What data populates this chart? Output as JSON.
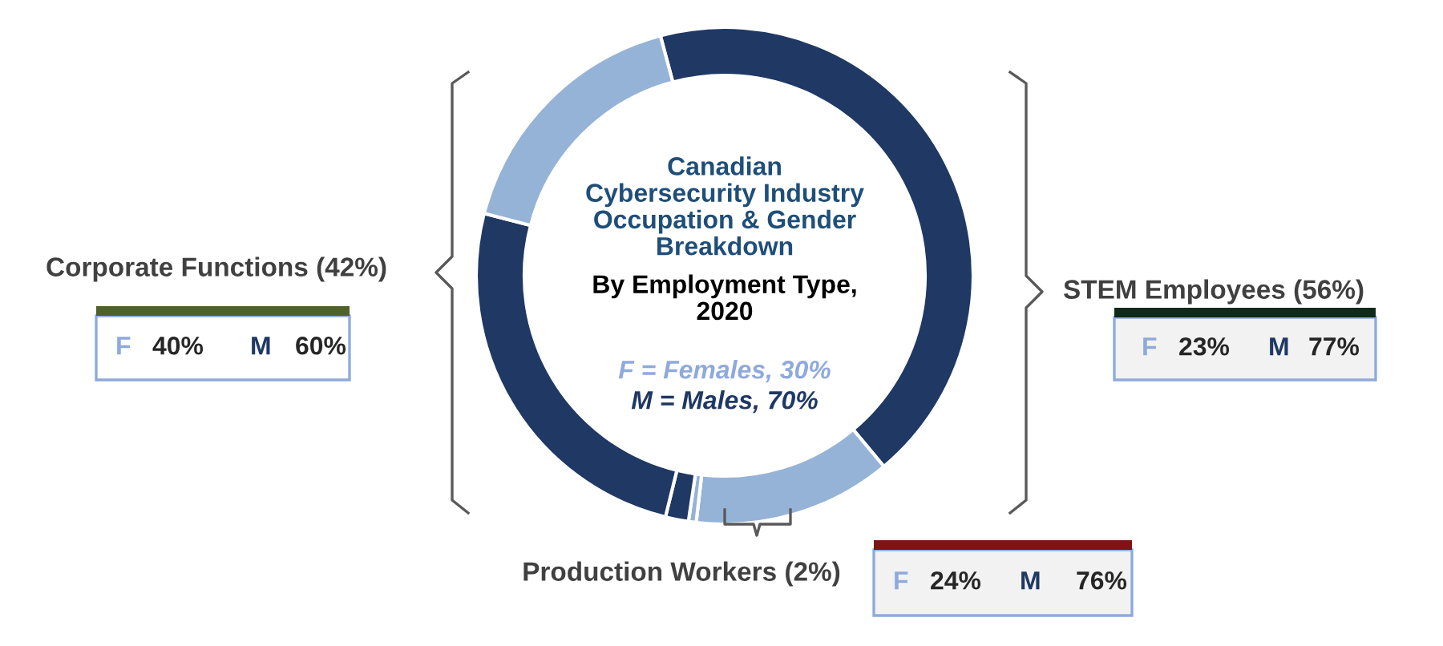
{
  "chart_data": {
    "type": "donut",
    "title": "Canadian\nCybersecurity Industry\nOccupation & Gender\nBreakdown",
    "subtitle": "By Employment Type,\n2020",
    "categories": [
      null,
      null,
      null,
      null,
      null,
      null
    ],
    "values": [
      43.1,
      12.9,
      0.5,
      1.5,
      25.2,
      16.8
    ],
    "colors": [
      "#1f3864",
      "#95b3d7",
      "#95b3d7",
      "#1f3864",
      "#1f3864",
      "#95b3d7"
    ],
    "annotations": [
      "Corporate Functions (42%)",
      "F",
      "40%",
      "M",
      "60%",
      "STEM Employees (56%)",
      "F",
      "23%",
      "M",
      "77%",
      "Production Workers (2%)",
      "F",
      "24%",
      "M",
      "76%",
      "F = Females, 30%",
      "M = Males, 70%"
    ]
  }
}
